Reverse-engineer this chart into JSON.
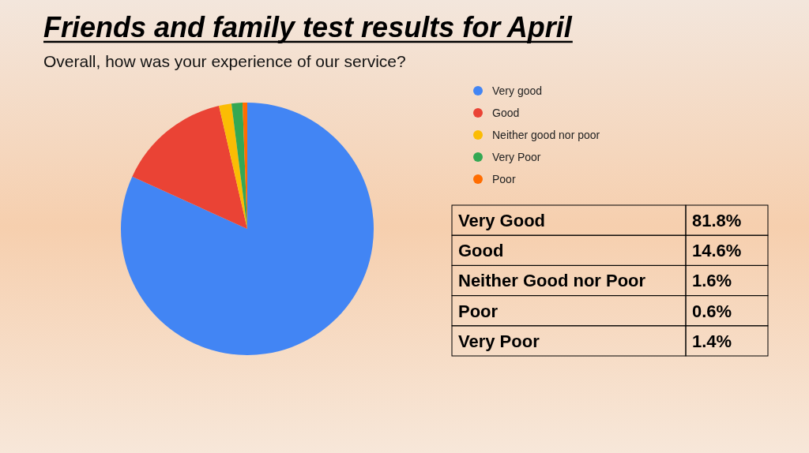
{
  "chart_data": {
    "type": "pie",
    "title": "Friends and family test results for April",
    "subtitle": "Overall, how was your experience of our service?",
    "categories": [
      "Very good",
      "Good",
      "Neither good nor poor",
      "Very Poor",
      "Poor"
    ],
    "values": [
      81.8,
      14.6,
      1.6,
      1.4,
      0.6
    ],
    "colors": [
      "#4285f4",
      "#ea4335",
      "#fbbc04",
      "#34a853",
      "#ff6d01"
    ],
    "annotations": [
      "Very Good",
      "81.8%",
      "Good",
      "14.6%",
      "Neither Good nor Poor",
      "1.6%",
      "Poor",
      "0.6%",
      "Very Poor",
      "1.4%"
    ],
    "legend": "right"
  }
}
